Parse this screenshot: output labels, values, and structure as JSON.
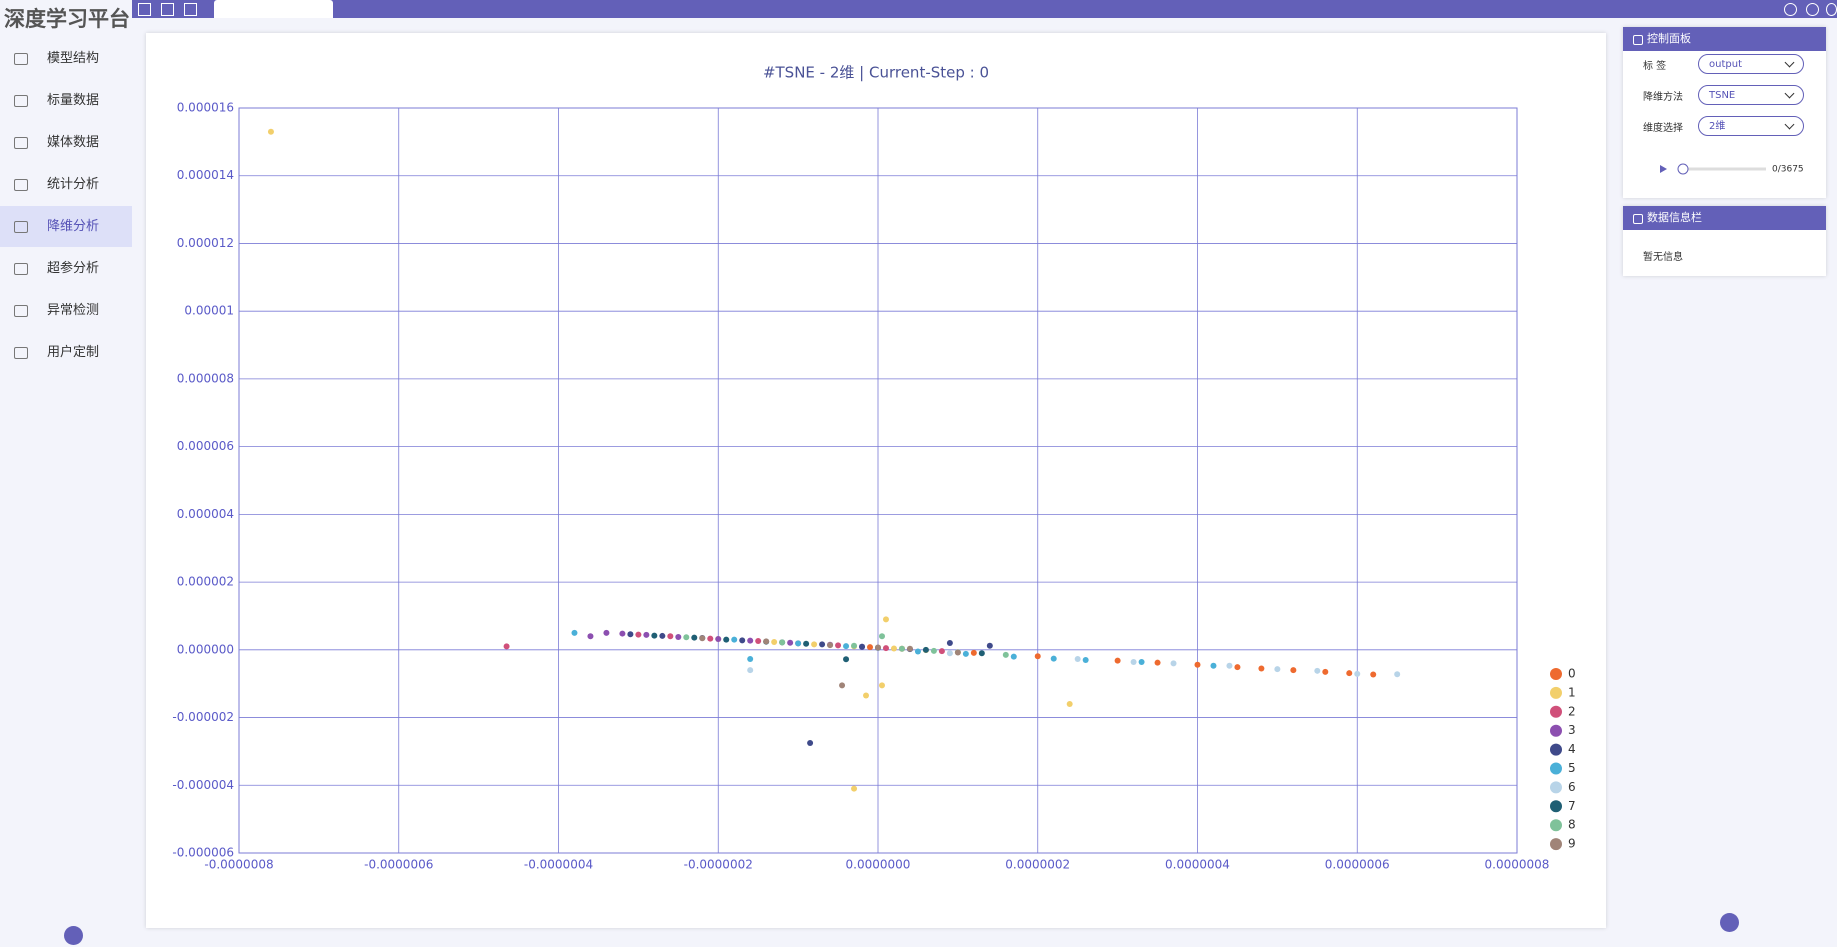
{
  "header": {
    "logo": "深度学习平台"
  },
  "sidebar": {
    "active": 4,
    "items": [
      "模型结构",
      "标量数据",
      "媒体数据",
      "统计分析",
      "降维分析",
      "超参分析",
      "异常检测",
      "用户定制"
    ]
  },
  "chart_data": {
    "type": "scatter",
    "title": "#TSNE - 2维 | Current-Step : 0",
    "grid": true,
    "legend": "right",
    "xlim": [
      -8e-07,
      8e-07
    ],
    "xticks": [
      {
        "value": -8e-07,
        "label": "-0.0000008"
      },
      {
        "value": -6e-07,
        "label": "-0.0000006"
      },
      {
        "value": -4e-07,
        "label": "-0.0000004"
      },
      {
        "value": -2e-07,
        "label": "-0.0000002"
      },
      {
        "value": 0,
        "label": "0.0000000"
      },
      {
        "value": 2e-07,
        "label": "0.0000002"
      },
      {
        "value": 4e-07,
        "label": "0.0000004"
      },
      {
        "value": 6e-07,
        "label": "0.0000006"
      },
      {
        "value": 8e-07,
        "label": "0.0000008"
      }
    ],
    "ylim": [
      -6e-06,
      1.6e-05
    ],
    "yticks": [
      -6e-06,
      -4e-06,
      -2e-06,
      {
        "value": 0,
        "label": "0.000000"
      },
      2e-06,
      4e-06,
      6e-06,
      8e-06,
      1e-05,
      1.2e-05,
      1.4e-05,
      1.6e-05
    ],
    "series": [
      {
        "name": "0",
        "color": "#ee6a2f",
        "x": [
          -1e-08,
          3e-08,
          1.2e-07,
          2e-07,
          3e-07,
          3.5e-07,
          4e-07,
          4.5e-07,
          4.8e-07,
          5.2e-07,
          5.6e-07,
          5.9e-07,
          6.2e-07
        ],
        "values": [
          8e-08,
          3e-08,
          -9e-08,
          -1.9e-07,
          -3.2e-07,
          -3.8e-07,
          -4.4e-07,
          -5.1e-07,
          -5.5e-07,
          -6e-07,
          -6.5e-07,
          -6.9e-07,
          -7.3e-07
        ]
      },
      {
        "name": "1",
        "color": "#f2cf6b",
        "x": [
          -2e-07,
          -1.3e-07,
          -8e-08,
          -3e-08,
          2e-08,
          6e-08,
          -7.6e-07,
          -3e-08,
          2.4e-07,
          1e-08,
          -1.5e-08,
          5e-09
        ],
        "values": [
          3.2e-07,
          2.3e-07,
          1.6e-07,
          1e-07,
          4e-08,
          -1e-08,
          1.53e-05,
          -4.1e-06,
          -1.6e-06,
          9e-07,
          -1.35e-06,
          -1.05e-06
        ]
      },
      {
        "name": "2",
        "color": "#d0507a",
        "x": [
          -3e-07,
          -2.6e-07,
          -2.1e-07,
          -1.5e-07,
          -1e-07,
          -5e-08,
          1e-08,
          8e-08,
          -4.65e-07
        ],
        "values": [
          4.5e-07,
          4e-07,
          3.3e-07,
          2.6e-07,
          1.9e-07,
          1.3e-07,
          5e-08,
          -4e-08,
          1e-07
        ]
      },
      {
        "name": "3",
        "color": "#8c4fb0",
        "x": [
          -3.4e-07,
          -3.2e-07,
          -2.9e-07,
          -2.5e-07,
          -2e-07,
          -1.6e-07,
          -1.1e-07,
          -6e-08,
          -2e-08,
          -3.6e-07
        ],
        "values": [
          5e-07,
          4.8e-07,
          4.4e-07,
          3.8e-07,
          3.2e-07,
          2.7e-07,
          2.1e-07,
          1.5e-07,
          9e-08,
          4e-07
        ]
      },
      {
        "name": "4",
        "color": "#3f4a8a",
        "x": [
          -3.1e-07,
          -2.7e-07,
          -2.2e-07,
          -1.7e-07,
          -1.2e-07,
          -7e-08,
          -2e-08,
          4e-08,
          9e-08,
          1.4e-07,
          -8.5e-08
        ],
        "values": [
          4.6e-07,
          4.1e-07,
          3.5e-07,
          2.8e-07,
          2.2e-07,
          1.6e-07,
          9e-08,
          2e-08,
          2e-07,
          1.2e-07,
          -2.75e-06
        ]
      },
      {
        "name": "5",
        "color": "#4ab0d8",
        "x": [
          -1.8e-07,
          -1e-07,
          -4e-08,
          5e-08,
          1.1e-07,
          1.7e-07,
          2.2e-07,
          2.6e-07,
          3.3e-07,
          4.2e-07,
          -3.8e-07,
          -1.6e-07
        ],
        "values": [
          3e-07,
          1.9e-07,
          1.1e-07,
          -5e-08,
          -1.2e-07,
          -2e-07,
          -2.6e-07,
          -3e-07,
          -3.6e-07,
          -4.7e-07,
          5e-07,
          -2.7e-07
        ]
      },
      {
        "name": "6",
        "color": "#b8d4e8",
        "x": [
          2.5e-07,
          3.2e-07,
          3.7e-07,
          4.4e-07,
          5e-07,
          5.5e-07,
          6e-07,
          6.5e-07,
          -1.6e-07,
          9e-08
        ],
        "values": [
          -2.7e-07,
          -3.6e-07,
          -4e-07,
          -4.7e-07,
          -5.7e-07,
          -6.2e-07,
          -7.1e-07,
          -7.2e-07,
          -6e-07,
          -1e-07
        ]
      },
      {
        "name": "7",
        "color": "#1f5f74",
        "x": [
          -2.8e-07,
          -2.3e-07,
          -1.9e-07,
          -1.4e-07,
          -9e-08,
          0,
          6e-08,
          1.3e-07,
          -4e-08
        ],
        "values": [
          4.2e-07,
          3.6e-07,
          3e-07,
          2.4e-07,
          1.8e-07,
          6e-08,
          0,
          -1e-07,
          -2.8e-07
        ]
      },
      {
        "name": "8",
        "color": "#7fc29a",
        "x": [
          -2.4e-07,
          -1.2e-07,
          -3e-08,
          3e-08,
          7e-08,
          1e-07,
          1.6e-07,
          5e-09
        ],
        "values": [
          3.7e-07,
          2.2e-07,
          1.2e-07,
          3e-08,
          -3e-08,
          -7e-08,
          -1.5e-07,
          4e-07
        ]
      },
      {
        "name": "9",
        "color": "#a08478",
        "x": [
          -2.2e-07,
          -1.4e-07,
          -6e-08,
          0,
          4e-08,
          1e-07,
          -4.5e-08
        ],
        "values": [
          3.4e-07,
          2.5e-07,
          1.4e-07,
          7e-08,
          3e-08,
          -8e-08,
          -1.05e-06
        ]
      }
    ]
  },
  "control_panel": {
    "title": "控制面板",
    "fields": [
      {
        "label": "标 签",
        "value": "output"
      },
      {
        "label": "降维方法",
        "value": "TSNE"
      },
      {
        "label": "维度选择",
        "value": "2维"
      }
    ],
    "progress": "0/3675"
  },
  "info_panel": {
    "title": "数据信息栏",
    "message": "暂无信息"
  }
}
